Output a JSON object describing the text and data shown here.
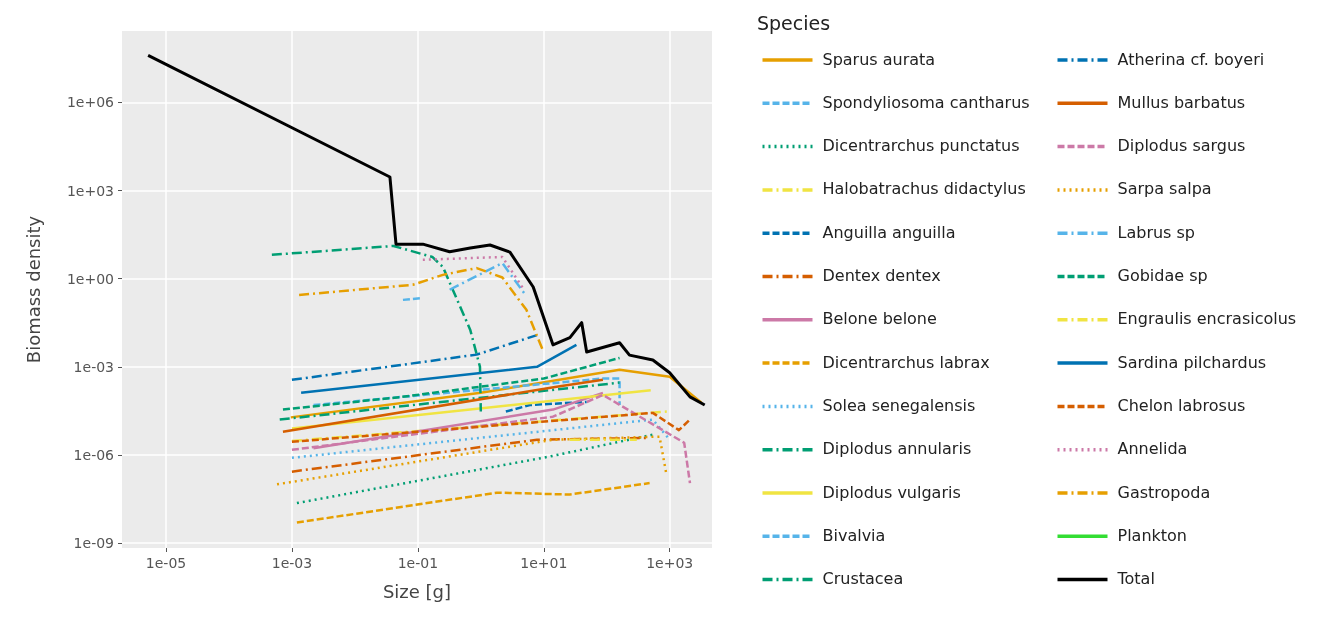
{
  "chart_data": {
    "type": "line",
    "xlabel": "Size [g]",
    "ylabel": "Biomass density",
    "legend_title": "Species",
    "legend": "right",
    "grid": true,
    "log": "xy",
    "marker": "none",
    "xlim": [
      2e-06,
      4700
    ],
    "ylim": [
      6.8e-10,
      270000000.0
    ],
    "xticks": [
      {
        "value": 1e-05,
        "label": "1e-05"
      },
      {
        "value": 0.001,
        "label": "1e-03"
      },
      {
        "value": 0.1,
        "label": "1e-01"
      },
      {
        "value": 10,
        "label": "1e+01"
      },
      {
        "value": 1000,
        "label": "1e+03"
      }
    ],
    "yticks": [
      {
        "value": 1e-09,
        "label": "1e-09"
      },
      {
        "value": 1e-06,
        "label": "1e-06"
      },
      {
        "value": 0.001,
        "label": "1e-03"
      },
      {
        "value": 1,
        "label": "1e+00"
      },
      {
        "value": 1000,
        "label": "1e+03"
      },
      {
        "value": 1000000.0,
        "label": "1e+06"
      }
    ],
    "series": [
      {
        "name": "Sparus aurata",
        "color": "#e69f00",
        "line_style": "solid",
        "x": [
          0.00096,
          1,
          160,
          1000,
          3200
        ],
        "values": [
          1.9e-05,
          0.00013,
          0.0008,
          0.00046,
          6e-05
        ]
      },
      {
        "name": "Spondyliosoma cantharus",
        "color": "#56b4e9",
        "line_style": "dashed",
        "x": [
          0.0022,
          87,
          160,
          160
        ],
        "values": [
          5e-05,
          0.0004,
          0.0004,
          5e-05
        ]
      },
      {
        "name": "Dicentrarchus punctatus",
        "color": "#009e73",
        "line_style": "dotted",
        "x": [
          0.0012,
          12,
          540
        ],
        "values": [
          2.3e-08,
          8.7e-07,
          4.9e-06
        ]
      },
      {
        "name": "Halobatrachus didactylus",
        "color": "#f0e442",
        "line_style": "dashdot",
        "x": [
          0.001,
          900
        ],
        "values": [
          3e-06,
          3e-05
        ]
      },
      {
        "name": "Anguilla anguilla",
        "color": "#0072b2",
        "line_style": "dashed",
        "x": [
          2.5,
          6,
          48
        ],
        "values": [
          3e-05,
          5e-05,
          6.4e-05
        ]
      },
      {
        "name": "Dentex dentex",
        "color": "#d55e00",
        "line_style": "dashdot",
        "x": [
          0.001,
          7.8,
          480
        ],
        "values": [
          2.7e-07,
          3.3e-06,
          3.8e-06
        ]
      },
      {
        "name": "Belone belone",
        "color": "#cc79a7",
        "line_style": "solid",
        "x": [
          0.0022,
          14,
          87
        ],
        "values": [
          1.7e-06,
          3.5e-05,
          0.00013
        ]
      },
      {
        "name": "Dicentrarchus labrax",
        "color": "#e69f00",
        "line_style": "dashed",
        "x": [
          0.0012,
          1.8,
          26,
          480
        ],
        "values": [
          5e-09,
          5.2e-08,
          4.5e-08,
          1.1e-07
        ]
      },
      {
        "name": "Solea senegalensis",
        "color": "#56b4e9",
        "line_style": "dotted",
        "x": [
          0.001,
          540,
          1000
        ],
        "values": [
          8e-07,
          1.6e-05,
          3.3e-06
        ]
      },
      {
        "name": "Diplodus annularis",
        "color": "#009e73",
        "line_style": "dashdot",
        "x": [
          0.00064,
          160
        ],
        "values": [
          1.6e-05,
          0.00029
        ]
      },
      {
        "name": "Diplodus vulgaris",
        "color": "#f0e442",
        "line_style": "solid",
        "x": [
          0.001,
          500
        ],
        "values": [
          8e-06,
          0.00016
        ]
      },
      {
        "name": "Bivalvia",
        "color": "#56b4e9",
        "line_style": "dashed",
        "x": [
          0.058,
          0.12
        ],
        "values": [
          0.19,
          0.22
        ]
      },
      {
        "name": "Crustacea",
        "color": "#009e73",
        "line_style": "dashdot",
        "x": [
          0.00048,
          0.041,
          0.17,
          0.25,
          0.68,
          0.97,
          1
        ],
        "values": [
          6.5,
          13,
          5.5,
          2.5,
          0.018,
          0.001,
          3e-05
        ]
      },
      {
        "name": "Atherina cf. boyeri",
        "color": "#0072b2",
        "line_style": "dashdot",
        "x": [
          0.001,
          0.86,
          7.8
        ],
        "values": [
          0.00036,
          0.0026,
          0.012
        ]
      },
      {
        "name": "Mullus barbatus",
        "color": "#d55e00",
        "line_style": "solid",
        "x": [
          0.00072,
          16,
          87
        ],
        "values": [
          6.2e-06,
          0.00021,
          0.00036
        ]
      },
      {
        "name": "Diplodus sargus",
        "color": "#cc79a7",
        "line_style": "dashed",
        "x": [
          0.001,
          14,
          87,
          1700,
          2100
        ],
        "values": [
          1.5e-06,
          2e-05,
          0.00011,
          2.6e-06,
          1.1e-07
        ]
      },
      {
        "name": "Sarpa salpa",
        "color": "#e69f00",
        "line_style": "dotted",
        "x": [
          0.00058,
          14,
          690,
          880
        ],
        "values": [
          1e-07,
          3.3e-06,
          4.2e-06,
          2.4e-07
        ]
      },
      {
        "name": "Labrus sp",
        "color": "#56b4e9",
        "line_style": "dashdot",
        "x": [
          0.32,
          2.2,
          5
        ],
        "values": [
          0.42,
          3.4,
          0.3
        ]
      },
      {
        "name": "Gobidae sp",
        "color": "#009e73",
        "line_style": "dashed",
        "x": [
          0.00072,
          0.056,
          10,
          160
        ],
        "values": [
          3.5e-05,
          9.5e-05,
          0.0004,
          0.002
        ]
      },
      {
        "name": "Engraulis encrasicolus",
        "color": "#f0e442",
        "line_style": "dashdot",
        "x": [
          26,
          300
        ],
        "values": [
          3.3e-06,
          3.3e-06
        ]
      },
      {
        "name": "Sardina pilchardus",
        "color": "#0072b2",
        "line_style": "solid",
        "x": [
          0.0014,
          7.8,
          33
        ],
        "values": [
          0.00013,
          0.001,
          0.0056
        ]
      },
      {
        "name": "Chelon labrosus",
        "color": "#d55e00",
        "line_style": "dashed",
        "x": [
          0.001,
          540,
          1400,
          2100
        ],
        "values": [
          2.8e-06,
          2.7e-05,
          7e-06,
          1.6e-05
        ]
      },
      {
        "name": "Annelida",
        "color": "#cc79a7",
        "line_style": "dotted",
        "x": [
          0.12,
          2.2,
          4.6
        ],
        "values": [
          4.4,
          5.5,
          0.5
        ]
      },
      {
        "name": "Gastropoda",
        "color": "#e69f00",
        "line_style": "dashdot",
        "x": [
          0.0013,
          0.083,
          0.25,
          0.86,
          2.2,
          5.3,
          9.6
        ],
        "values": [
          0.28,
          0.62,
          1.35,
          2.3,
          1.1,
          0.087,
          0.0038
        ]
      },
      {
        "name": "Plankton",
        "color": "#33dd33",
        "line_style": "solid"
      },
      {
        "name": "Total",
        "color": "#000000",
        "line_style": "solid",
        "x": [
          5.2e-06,
          0.036,
          0.045,
          0.12,
          0.32,
          0.68,
          1.4,
          2.9,
          6.8,
          14,
          26,
          40,
          48,
          160,
          230,
          540,
          1000,
          2100,
          3600
        ],
        "values": [
          40000000.0,
          2900,
          15,
          15,
          8.3,
          11,
          14,
          8,
          0.52,
          0.0056,
          0.0098,
          0.032,
          0.0032,
          0.0066,
          0.0025,
          0.0017,
          0.00063,
          9.5e-05,
          5e-05
        ]
      }
    ]
  }
}
